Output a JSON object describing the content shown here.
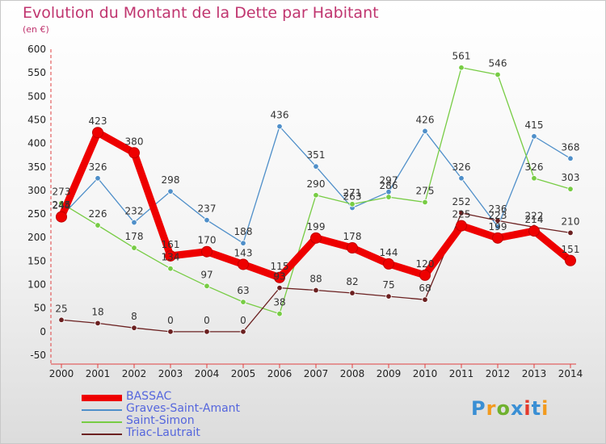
{
  "header": {
    "title": "Evolution du Montant de la Dette par Habitant",
    "subtitle": "(en €)"
  },
  "logo": {
    "text": "Proxiti",
    "colors": [
      "#3a8fd4",
      "#f29a1e",
      "#6fb12e",
      "#3a8fd4",
      "#e43a2c",
      "#3a8fd4",
      "#f29a1e"
    ]
  },
  "chart_data": {
    "type": "line",
    "title": "Evolution du Montant de la Dette par Habitant",
    "subtitle": "(en €)",
    "x": [
      "2000",
      "2001",
      "2002",
      "2003",
      "2004",
      "2005",
      "2006",
      "2007",
      "2008",
      "2009",
      "2010",
      "2011",
      "2012",
      "2013",
      "2014"
    ],
    "ylim": [
      -50,
      600
    ],
    "yticks": [
      "-50",
      "0",
      "50",
      "100",
      "150",
      "200",
      "250",
      "300",
      "350",
      "400",
      "450",
      "500",
      "550",
      "600"
    ],
    "grid": false,
    "legend_position": "bottom-left",
    "series": [
      {
        "name": "BASSAC",
        "color": "#ee0000",
        "values": [
          244,
          423,
          380,
          161,
          170,
          143,
          115,
          199,
          178,
          144,
          120,
          225,
          199,
          214,
          151
        ]
      },
      {
        "name": "Graves-Saint-Amant",
        "color": "#4f8fc9",
        "values": [
          245,
          326,
          232,
          298,
          237,
          188,
          436,
          351,
          263,
          297,
          426,
          326,
          223,
          415,
          368
        ]
      },
      {
        "name": "Saint-Simon",
        "color": "#77cc44",
        "values": [
          273,
          226,
          178,
          134,
          97,
          63,
          38,
          290,
          271,
          286,
          275,
          561,
          546,
          326,
          303
        ]
      },
      {
        "name": "Triac-Lautrait",
        "color": "#6b2020",
        "values": [
          25,
          18,
          8,
          0,
          0,
          0,
          93,
          88,
          82,
          75,
          68,
          252,
          236,
          222,
          210
        ]
      }
    ]
  }
}
